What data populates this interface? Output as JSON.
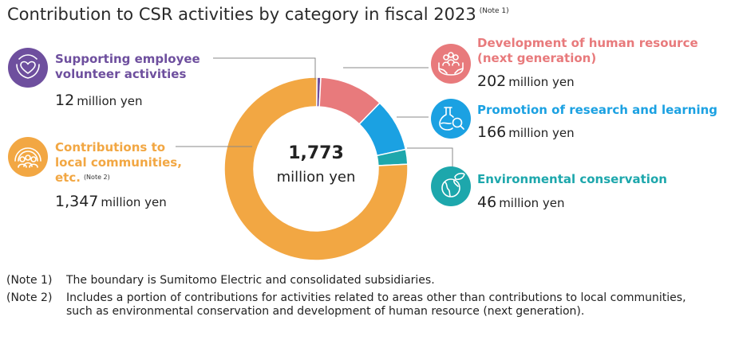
{
  "title": "Contribution to CSR activities by category in fiscal 2023",
  "title_note": "(Note 1)",
  "center": {
    "value": "1,773",
    "unit": "million yen"
  },
  "categories": {
    "volunteer": {
      "label_1": "Supporting employee",
      "label_2": "volunteer activities",
      "value": "12",
      "unit": "million yen",
      "color": "#6e4f9e",
      "icon": "heart-hands-icon"
    },
    "local": {
      "label_1": "Contributions to",
      "label_2": "local communities,",
      "label_3": "etc.",
      "note": "(Note 2)",
      "value": "1,347",
      "unit": "million yen",
      "color": "#f2a743",
      "icon": "community-people-icon"
    },
    "human": {
      "label_1": "Development of human resource",
      "label_2": "(next generation)",
      "value": "202",
      "unit": "million yen",
      "color": "#e87a7c",
      "icon": "people-in-hands-icon"
    },
    "research": {
      "label": "Promotion of research and learning",
      "value": "166",
      "unit": "million yen",
      "color": "#1ba1e2",
      "icon": "flask-magnifier-icon"
    },
    "environment": {
      "label": "Environmental conservation",
      "value": "46",
      "unit": "million yen",
      "color": "#1da7ac",
      "icon": "globe-leaf-icon"
    }
  },
  "notes": [
    {
      "mark": "(Note 1)",
      "text": "The boundary is Sumitomo Electric and consolidated subsidiaries."
    },
    {
      "mark": "(Note 2)",
      "text": "Includes a portion of contributions for activities related to areas other than contributions to local communities, such as environmental conservation and development of human resource (next generation)."
    }
  ],
  "chart_data": {
    "type": "pie",
    "donut": true,
    "title": "Contribution to CSR activities by category in fiscal 2023",
    "total": 1773,
    "unit": "million yen",
    "slices": [
      {
        "name": "Supporting employee volunteer activities",
        "value": 12,
        "color": "#6e4f9e"
      },
      {
        "name": "Development of human resource (next generation)",
        "value": 202,
        "color": "#e87a7c"
      },
      {
        "name": "Promotion of research and learning",
        "value": 166,
        "color": "#1ba1e2"
      },
      {
        "name": "Environmental conservation",
        "value": 46,
        "color": "#1da7ac"
      },
      {
        "name": "Contributions to local communities, etc.",
        "value": 1347,
        "color": "#f2a743"
      }
    ]
  }
}
